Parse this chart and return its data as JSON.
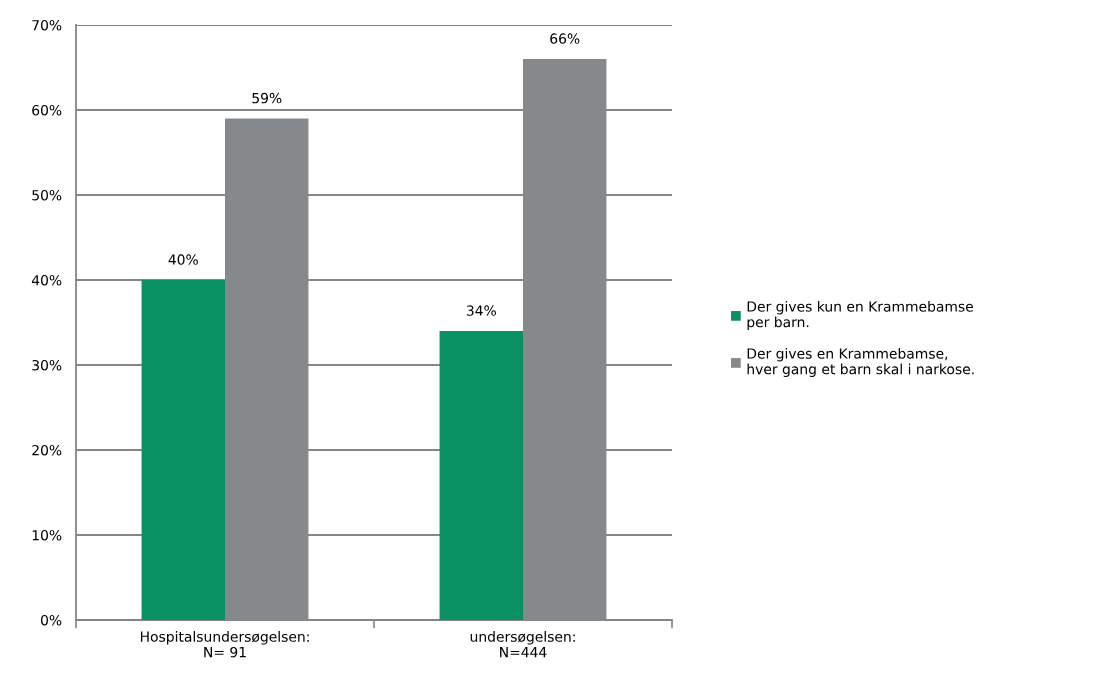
{
  "chart_data": {
    "type": "bar",
    "categories": [
      "Hospitalsundersøgelsen:\nN= 91",
      "undersøgelsen:\nN=444"
    ],
    "series": [
      {
        "name": "Der gives kun en Krammebamse\nper barn.",
        "color": "#0a9163",
        "values": [
          40,
          34
        ],
        "value_labels": [
          "40%",
          "34%"
        ]
      },
      {
        "name": "Der gives en Krammebamse,\nhver gang et barn skal i narkose.",
        "color": "#86898c",
        "values": [
          59,
          66
        ],
        "value_labels": [
          "59%",
          "66%"
        ]
      }
    ],
    "ylim": [
      0,
      70
    ],
    "yticks": [
      {
        "value": 0,
        "label": "0%"
      },
      {
        "value": 10,
        "label": "10%"
      },
      {
        "value": 20,
        "label": "20%"
      },
      {
        "value": 30,
        "label": "30%"
      },
      {
        "value": 40,
        "label": "40%"
      },
      {
        "value": 50,
        "label": "50%"
      },
      {
        "value": 60,
        "label": "60%"
      },
      {
        "value": 70,
        "label": "70%"
      }
    ],
    "grid": "y",
    "legend": "right"
  }
}
